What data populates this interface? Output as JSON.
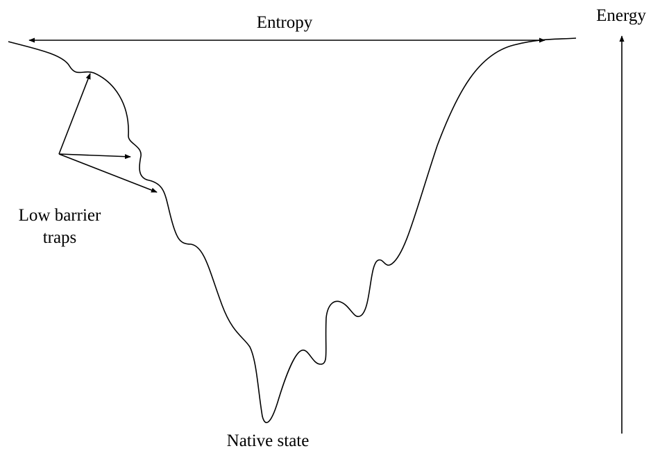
{
  "labels": {
    "entropy": "Entropy",
    "energy": "Energy",
    "traps": [
      "Low barrier",
      "traps"
    ],
    "native": "Native state"
  }
}
